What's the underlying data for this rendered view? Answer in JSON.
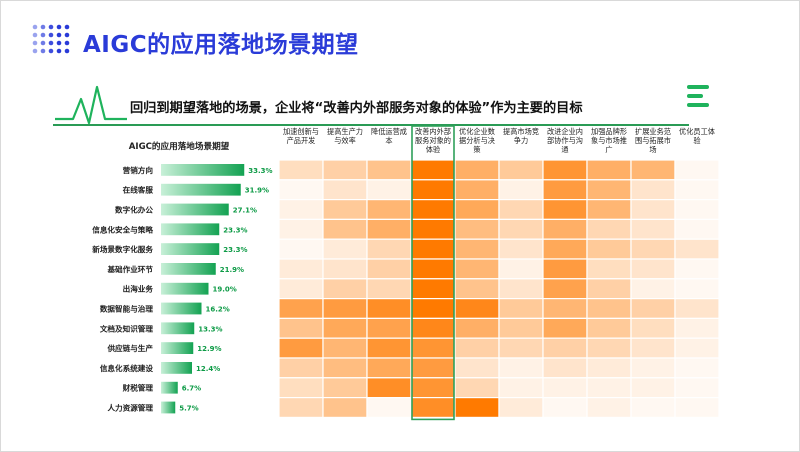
{
  "page": {
    "title": "AIGC的应用落地场景期望",
    "subtitle": "回归到期望落地的场景，企业将“改善内外部服务对象的体验”作为主要的目标"
  },
  "colors": {
    "title_blue": "#2a3bd8",
    "accent_green": "#1fb35c",
    "bar_green_dark": "#13a252",
    "bar_green_light": "#c8f0d8",
    "label_green": "#0c9a45",
    "heat_max": "#ff7a00",
    "heat_min": "#ffffff",
    "highlight_frame": "#2ea05a"
  },
  "icons": [
    "dots-grid-icon",
    "pulse-line-icon",
    "menu-bars-icon"
  ],
  "chart_data": {
    "type": "heatmap",
    "title": "AIGC的应用落地场景期望",
    "rows": [
      "营销方向",
      "在线客服",
      "数字化办公",
      "信息化安全与策略",
      "新场景数字化服务",
      "基础作业环节",
      "出海业务",
      "数据智能与治理",
      "文档及知识管理",
      "供应链与生产",
      "信息化系统建设",
      "财税管理",
      "人力资源管理"
    ],
    "row_values": [
      33.3,
      31.9,
      27.1,
      23.3,
      23.3,
      21.9,
      19.0,
      16.2,
      13.3,
      12.9,
      12.4,
      6.7,
      5.7
    ],
    "row_value_labels": [
      "33.3%",
      "31.9%",
      "27.1%",
      "23.3%",
      "23.3%",
      "21.9%",
      "19.0%",
      "16.2%",
      "13.3%",
      "12.9%",
      "12.4%",
      "6.7%",
      "5.7%"
    ],
    "columns": [
      [
        "加速创新与",
        "产品开发"
      ],
      [
        "提高生产力",
        "与效率"
      ],
      [
        "降低运营成",
        "本"
      ],
      [
        "改善内外部",
        "服务对象的",
        "体验"
      ],
      [
        "优化企业数",
        "据分析与决",
        "策"
      ],
      [
        "提高市场竞",
        "争力"
      ],
      [
        "改进企业内",
        "部协作与沟",
        "通"
      ],
      [
        "加强品牌形",
        "象与市场推",
        "广"
      ],
      [
        "扩展业务范",
        "围与拓展市",
        "场"
      ],
      [
        "优化员工体",
        "验"
      ]
    ],
    "highlight_column": 3,
    "intensity": [
      [
        0.25,
        0.35,
        0.45,
        1.0,
        0.6,
        0.4,
        0.8,
        0.6,
        0.55,
        0.05
      ],
      [
        0.05,
        0.2,
        0.1,
        1.0,
        0.6,
        0.1,
        0.75,
        0.55,
        0.2,
        0.05
      ],
      [
        0.1,
        0.4,
        0.55,
        1.0,
        0.65,
        0.3,
        0.8,
        0.55,
        0.2,
        0.05
      ],
      [
        0.1,
        0.45,
        0.6,
        1.0,
        0.5,
        0.3,
        0.6,
        0.3,
        0.2,
        0.05
      ],
      [
        0.05,
        0.15,
        0.3,
        1.0,
        0.55,
        0.2,
        0.65,
        0.4,
        0.3,
        0.2
      ],
      [
        0.15,
        0.2,
        0.35,
        1.0,
        0.55,
        0.1,
        0.75,
        0.25,
        0.2,
        0.05
      ],
      [
        0.15,
        0.35,
        0.3,
        1.0,
        0.45,
        0.2,
        0.7,
        0.35,
        0.1,
        0.05
      ],
      [
        0.7,
        0.75,
        0.85,
        1.0,
        0.9,
        0.4,
        0.55,
        0.45,
        0.35,
        0.2
      ],
      [
        0.45,
        0.65,
        0.7,
        0.9,
        0.6,
        0.4,
        0.65,
        0.4,
        0.25,
        0.1
      ],
      [
        0.75,
        0.55,
        0.8,
        0.8,
        0.35,
        0.3,
        0.35,
        0.3,
        0.2,
        0.1
      ],
      [
        0.35,
        0.5,
        0.65,
        0.75,
        0.2,
        0.1,
        0.2,
        0.15,
        0.1,
        0.05
      ],
      [
        0.25,
        0.4,
        0.85,
        0.8,
        0.3,
        0.1,
        0.1,
        0.1,
        0.1,
        0.05
      ],
      [
        0.3,
        0.45,
        0.05,
        0.85,
        1.0,
        0.15,
        0.05,
        0.1,
        0.05,
        0.05
      ]
    ],
    "xlim_bars": [
      0,
      40
    ],
    "grid": false
  }
}
